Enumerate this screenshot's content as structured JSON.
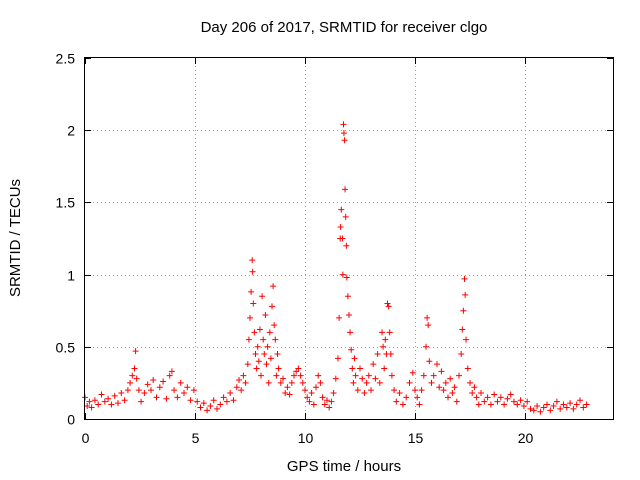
{
  "chart_data": {
    "type": "scatter",
    "title": "Day 206 of 2017, SRMTID for receiver clgo",
    "xlabel": "GPS time / hours",
    "ylabel": "SRMTID / TECUs",
    "xlim": [
      0,
      24
    ],
    "ylim": [
      0,
      2.5
    ],
    "xticks": [
      0,
      5,
      10,
      15,
      20
    ],
    "xtick_labels": [
      "0",
      "5",
      "10",
      "15",
      "20"
    ],
    "yticks": [
      0,
      0.5,
      1,
      1.5,
      2,
      2.5
    ],
    "ytick_labels": [
      "0",
      "0.5",
      "1",
      "1.5",
      "2",
      "2.5"
    ],
    "grid": true,
    "marker": "+",
    "color": "#ff0000",
    "series": [
      {
        "name": "SRMTID",
        "points": [
          [
            0.0,
            0.15
          ],
          [
            0.1,
            0.09
          ],
          [
            0.2,
            0.12
          ],
          [
            0.3,
            0.08
          ],
          [
            0.45,
            0.13
          ],
          [
            0.6,
            0.1
          ],
          [
            0.75,
            0.17
          ],
          [
            0.9,
            0.12
          ],
          [
            1.05,
            0.14
          ],
          [
            1.2,
            0.1
          ],
          [
            1.35,
            0.16
          ],
          [
            1.5,
            0.11
          ],
          [
            1.65,
            0.18
          ],
          [
            1.8,
            0.13
          ],
          [
            1.95,
            0.2
          ],
          [
            2.05,
            0.25
          ],
          [
            2.15,
            0.3
          ],
          [
            2.25,
            0.35
          ],
          [
            2.3,
            0.47
          ],
          [
            2.35,
            0.28
          ],
          [
            2.45,
            0.2
          ],
          [
            2.55,
            0.12
          ],
          [
            2.7,
            0.18
          ],
          [
            2.85,
            0.24
          ],
          [
            3.0,
            0.2
          ],
          [
            3.1,
            0.27
          ],
          [
            3.25,
            0.15
          ],
          [
            3.4,
            0.22
          ],
          [
            3.55,
            0.26
          ],
          [
            3.7,
            0.14
          ],
          [
            3.85,
            0.3
          ],
          [
            3.95,
            0.33
          ],
          [
            4.05,
            0.2
          ],
          [
            4.2,
            0.15
          ],
          [
            4.35,
            0.25
          ],
          [
            4.5,
            0.18
          ],
          [
            4.65,
            0.22
          ],
          [
            4.8,
            0.13
          ],
          [
            4.95,
            0.2
          ],
          [
            5.1,
            0.12
          ],
          [
            5.25,
            0.08
          ],
          [
            5.4,
            0.11
          ],
          [
            5.55,
            0.06
          ],
          [
            5.7,
            0.09
          ],
          [
            5.85,
            0.13
          ],
          [
            6.0,
            0.07
          ],
          [
            6.15,
            0.1
          ],
          [
            6.3,
            0.15
          ],
          [
            6.45,
            0.12
          ],
          [
            6.6,
            0.18
          ],
          [
            6.75,
            0.13
          ],
          [
            6.9,
            0.22
          ],
          [
            7.0,
            0.27
          ],
          [
            7.1,
            0.2
          ],
          [
            7.2,
            0.3
          ],
          [
            7.3,
            0.25
          ],
          [
            7.4,
            0.38
          ],
          [
            7.45,
            0.55
          ],
          [
            7.5,
            0.7
          ],
          [
            7.55,
            0.88
          ],
          [
            7.6,
            1.1
          ],
          [
            7.62,
            1.02
          ],
          [
            7.65,
            0.8
          ],
          [
            7.7,
            0.6
          ],
          [
            7.75,
            0.45
          ],
          [
            7.8,
            0.35
          ],
          [
            7.85,
            0.5
          ],
          [
            7.9,
            0.4
          ],
          [
            7.95,
            0.62
          ],
          [
            8.0,
            0.3
          ],
          [
            8.05,
            0.85
          ],
          [
            8.1,
            0.55
          ],
          [
            8.15,
            0.45
          ],
          [
            8.2,
            0.72
          ],
          [
            8.25,
            0.38
          ],
          [
            8.3,
            0.5
          ],
          [
            8.35,
            0.25
          ],
          [
            8.4,
            0.6
          ],
          [
            8.45,
            0.42
          ],
          [
            8.5,
            0.78
          ],
          [
            8.55,
            0.92
          ],
          [
            8.6,
            0.65
          ],
          [
            8.65,
            0.55
          ],
          [
            8.7,
            0.3
          ],
          [
            8.75,
            0.45
          ],
          [
            8.8,
            0.35
          ],
          [
            8.9,
            0.25
          ],
          [
            9.0,
            0.28
          ],
          [
            9.1,
            0.18
          ],
          [
            9.2,
            0.22
          ],
          [
            9.3,
            0.17
          ],
          [
            9.4,
            0.25
          ],
          [
            9.5,
            0.3
          ],
          [
            9.6,
            0.33
          ],
          [
            9.7,
            0.35
          ],
          [
            9.8,
            0.3
          ],
          [
            9.9,
            0.25
          ],
          [
            10.0,
            0.2
          ],
          [
            10.1,
            0.15
          ],
          [
            10.2,
            0.12
          ],
          [
            10.3,
            0.18
          ],
          [
            10.4,
            0.1
          ],
          [
            10.5,
            0.22
          ],
          [
            10.6,
            0.3
          ],
          [
            10.7,
            0.25
          ],
          [
            10.8,
            0.15
          ],
          [
            10.9,
            0.1
          ],
          [
            11.0,
            0.13
          ],
          [
            11.1,
            0.08
          ],
          [
            11.2,
            0.12
          ],
          [
            11.3,
            0.18
          ],
          [
            11.4,
            0.28
          ],
          [
            11.5,
            0.42
          ],
          [
            11.55,
            0.7
          ],
          [
            11.6,
            1.25
          ],
          [
            11.62,
            1.33
          ],
          [
            11.65,
            1.45
          ],
          [
            11.7,
            1.25
          ],
          [
            11.72,
            1.0
          ],
          [
            11.75,
            2.04
          ],
          [
            11.77,
            1.98
          ],
          [
            11.8,
            1.93
          ],
          [
            11.82,
            1.59
          ],
          [
            11.85,
            1.4
          ],
          [
            11.88,
            1.2
          ],
          [
            11.9,
            0.98
          ],
          [
            11.95,
            0.85
          ],
          [
            12.0,
            0.72
          ],
          [
            12.05,
            0.6
          ],
          [
            12.1,
            0.48
          ],
          [
            12.15,
            0.35
          ],
          [
            12.2,
            0.25
          ],
          [
            12.25,
            0.42
          ],
          [
            12.3,
            0.3
          ],
          [
            12.4,
            0.2
          ],
          [
            12.5,
            0.35
          ],
          [
            12.6,
            0.28
          ],
          [
            12.7,
            0.18
          ],
          [
            12.8,
            0.25
          ],
          [
            12.9,
            0.3
          ],
          [
            13.0,
            0.2
          ],
          [
            13.1,
            0.38
          ],
          [
            13.2,
            0.28
          ],
          [
            13.3,
            0.45
          ],
          [
            13.4,
            0.25
          ],
          [
            13.5,
            0.6
          ],
          [
            13.55,
            0.5
          ],
          [
            13.6,
            0.35
          ],
          [
            13.65,
            0.55
          ],
          [
            13.7,
            0.45
          ],
          [
            13.75,
            0.8
          ],
          [
            13.8,
            0.78
          ],
          [
            13.85,
            0.6
          ],
          [
            13.9,
            0.45
          ],
          [
            13.95,
            0.3
          ],
          [
            14.05,
            0.2
          ],
          [
            14.15,
            0.12
          ],
          [
            14.3,
            0.18
          ],
          [
            14.45,
            0.1
          ],
          [
            14.6,
            0.15
          ],
          [
            14.75,
            0.25
          ],
          [
            14.9,
            0.32
          ],
          [
            15.0,
            0.2
          ],
          [
            15.1,
            0.15
          ],
          [
            15.2,
            0.1
          ],
          [
            15.3,
            0.2
          ],
          [
            15.4,
            0.3
          ],
          [
            15.5,
            0.5
          ],
          [
            15.55,
            0.7
          ],
          [
            15.6,
            0.65
          ],
          [
            15.65,
            0.4
          ],
          [
            15.75,
            0.25
          ],
          [
            15.85,
            0.3
          ],
          [
            16.0,
            0.38
          ],
          [
            16.1,
            0.22
          ],
          [
            16.2,
            0.33
          ],
          [
            16.3,
            0.2
          ],
          [
            16.4,
            0.25
          ],
          [
            16.5,
            0.15
          ],
          [
            16.6,
            0.28
          ],
          [
            16.7,
            0.18
          ],
          [
            16.8,
            0.22
          ],
          [
            16.9,
            0.12
          ],
          [
            17.0,
            0.3
          ],
          [
            17.1,
            0.45
          ],
          [
            17.15,
            0.62
          ],
          [
            17.2,
            0.75
          ],
          [
            17.25,
            0.97
          ],
          [
            17.28,
            0.86
          ],
          [
            17.32,
            0.55
          ],
          [
            17.4,
            0.35
          ],
          [
            17.5,
            0.25
          ],
          [
            17.6,
            0.18
          ],
          [
            17.7,
            0.22
          ],
          [
            17.8,
            0.15
          ],
          [
            17.9,
            0.1
          ],
          [
            18.0,
            0.18
          ],
          [
            18.15,
            0.12
          ],
          [
            18.3,
            0.15
          ],
          [
            18.45,
            0.1
          ],
          [
            18.6,
            0.17
          ],
          [
            18.75,
            0.12
          ],
          [
            18.9,
            0.15
          ],
          [
            19.05,
            0.1
          ],
          [
            19.2,
            0.14
          ],
          [
            19.35,
            0.17
          ],
          [
            19.5,
            0.12
          ],
          [
            19.65,
            0.1
          ],
          [
            19.8,
            0.13
          ],
          [
            19.95,
            0.09
          ],
          [
            20.1,
            0.12
          ],
          [
            20.25,
            0.07
          ],
          [
            20.4,
            0.06
          ],
          [
            20.55,
            0.09
          ],
          [
            20.7,
            0.05
          ],
          [
            20.85,
            0.08
          ],
          [
            21.0,
            0.1
          ],
          [
            21.15,
            0.06
          ],
          [
            21.3,
            0.09
          ],
          [
            21.45,
            0.12
          ],
          [
            21.6,
            0.07
          ],
          [
            21.75,
            0.1
          ],
          [
            21.9,
            0.08
          ],
          [
            22.05,
            0.11
          ],
          [
            22.2,
            0.07
          ],
          [
            22.35,
            0.1
          ],
          [
            22.5,
            0.13
          ],
          [
            22.65,
            0.08
          ],
          [
            22.8,
            0.1
          ]
        ]
      }
    ]
  }
}
